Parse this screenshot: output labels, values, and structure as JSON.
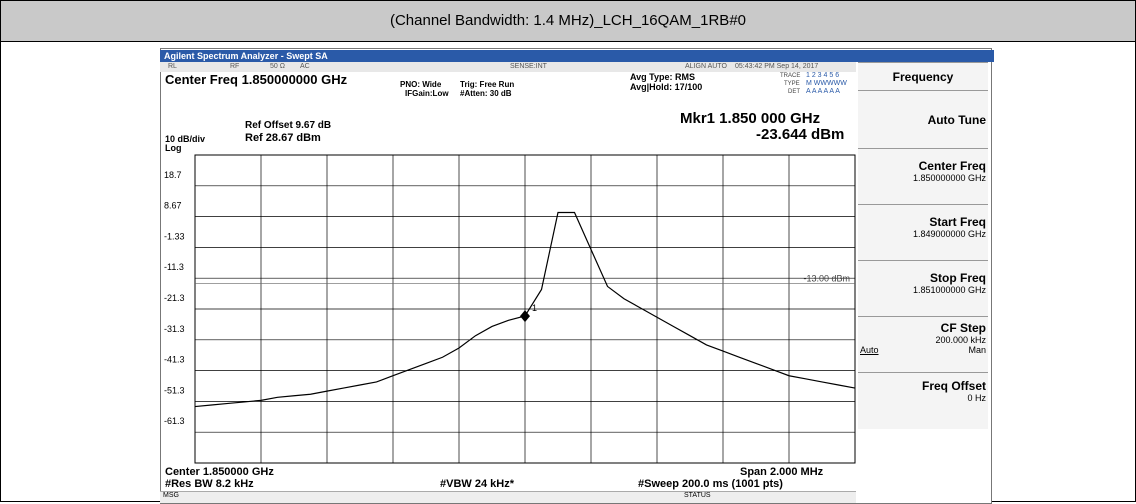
{
  "header": {
    "title": "(Channel Bandwidth: 1.4 MHz)_LCH_16QAM_1RB#0"
  },
  "screen": {
    "window_title": "Agilent Spectrum Analyzer - Swept SA",
    "status": [
      "RL",
      "RF",
      "50 Ω",
      "AC",
      "SENSE:INT",
      "ALIGN AUTO",
      "05:43:42 PM Sep 14, 2017"
    ],
    "center_freq": "Center Freq 1.850000000 GHz",
    "pno": "PNO: Wide",
    "ifgain": "IFGain:Low",
    "trig": "Trig: Free Run",
    "atten": "#Atten: 30 dB",
    "avg_type": "Avg Type: RMS",
    "avg_hold": "Avg|Hold: 17/100",
    "trace_info": {
      "trace": "TRACE",
      "trace_nums": "1 2 3 4 5 6",
      "type": "TYPE",
      "type_val": "M WWWWW",
      "det": "DET",
      "det_val": "A A A A A A"
    },
    "ref_offset": "Ref Offset 9.67 dB",
    "ref": "Ref 28.67 dBm",
    "scale": "10 dB/div",
    "log": "Log",
    "marker_freq": "Mkr1 1.850 000 GHz",
    "marker_level": "-23.644 dBm",
    "footer": [
      "Center 1.850000 GHz",
      "#Res BW 8.2 kHz",
      "#VBW 24 kHz*",
      "Span 2.000 MHz",
      "#Sweep  200.0 ms (1001 pts)"
    ],
    "msg": "MSG",
    "status_label": "STATUS",
    "softkeys": {
      "title": "Frequency",
      "auto_tune": "Auto Tune",
      "center": "Center Freq",
      "center_val": "1.850000000 GHz",
      "start": "Start Freq",
      "start_val": "1.849000000 GHz",
      "stop": "Stop Freq",
      "stop_val": "1.851000000 GHz",
      "step": "CF Step",
      "step_val": "200.000 kHz",
      "step_auto": "Auto",
      "step_man": "Man",
      "offset": "Freq Offset",
      "offset_val": "0 Hz"
    }
  },
  "chart_data": {
    "type": "line",
    "color": "#000000",
    "xlim": [
      1.849,
      1.851
    ],
    "ylim": [
      -71.33,
      28.67
    ],
    "xticks": [
      1.849,
      1.8492,
      1.8494,
      1.8496,
      1.8498,
      1.85,
      1.8502,
      1.8504,
      1.8506,
      1.8508,
      1.851
    ],
    "yticks": [
      {
        "value": 18.67,
        "label": "18.7"
      },
      8.67,
      -1.33,
      {
        "value": -11.33,
        "label": "-11.3"
      },
      {
        "value": -21.33,
        "label": "-21.3"
      },
      {
        "value": -31.33,
        "label": "-31.3"
      },
      {
        "value": -41.33,
        "label": "-41.3"
      },
      {
        "value": -51.33,
        "label": "-51.3"
      },
      {
        "value": -61.33,
        "label": "-61.3"
      }
    ],
    "x": [
      1.849,
      1.84905,
      1.8491,
      1.84915,
      1.8492,
      1.84925,
      1.8493,
      1.84935,
      1.8494,
      1.84945,
      1.8495,
      1.84955,
      1.8496,
      1.84965,
      1.8497,
      1.84975,
      1.8498,
      1.84985,
      1.8499,
      1.84995,
      1.85,
      1.85005,
      1.8501,
      1.85015,
      1.8502,
      1.85025,
      1.8503,
      1.85035,
      1.8504,
      1.85045,
      1.8505,
      1.85055,
      1.8506,
      1.85065,
      1.8507,
      1.85075,
      1.8508,
      1.85085,
      1.8509,
      1.85095,
      1.851
    ],
    "values": [
      -53,
      -52.5,
      -52,
      -51.5,
      -51,
      -50,
      -49.5,
      -49,
      -48,
      -47,
      -46,
      -45,
      -43,
      -41,
      -39,
      -37,
      -34,
      -30,
      -27,
      -25,
      -23.6,
      -15,
      10,
      10,
      -2,
      -14,
      -18,
      -21,
      -24,
      -27,
      -30,
      -33,
      -35,
      -37,
      -39,
      -41,
      -43,
      -44,
      -45,
      -46,
      -47
    ],
    "limit_line": {
      "value": -13,
      "label": "-13.00 dBm"
    },
    "marker": {
      "x": 1.85,
      "value": -23.644,
      "label": "1"
    }
  }
}
